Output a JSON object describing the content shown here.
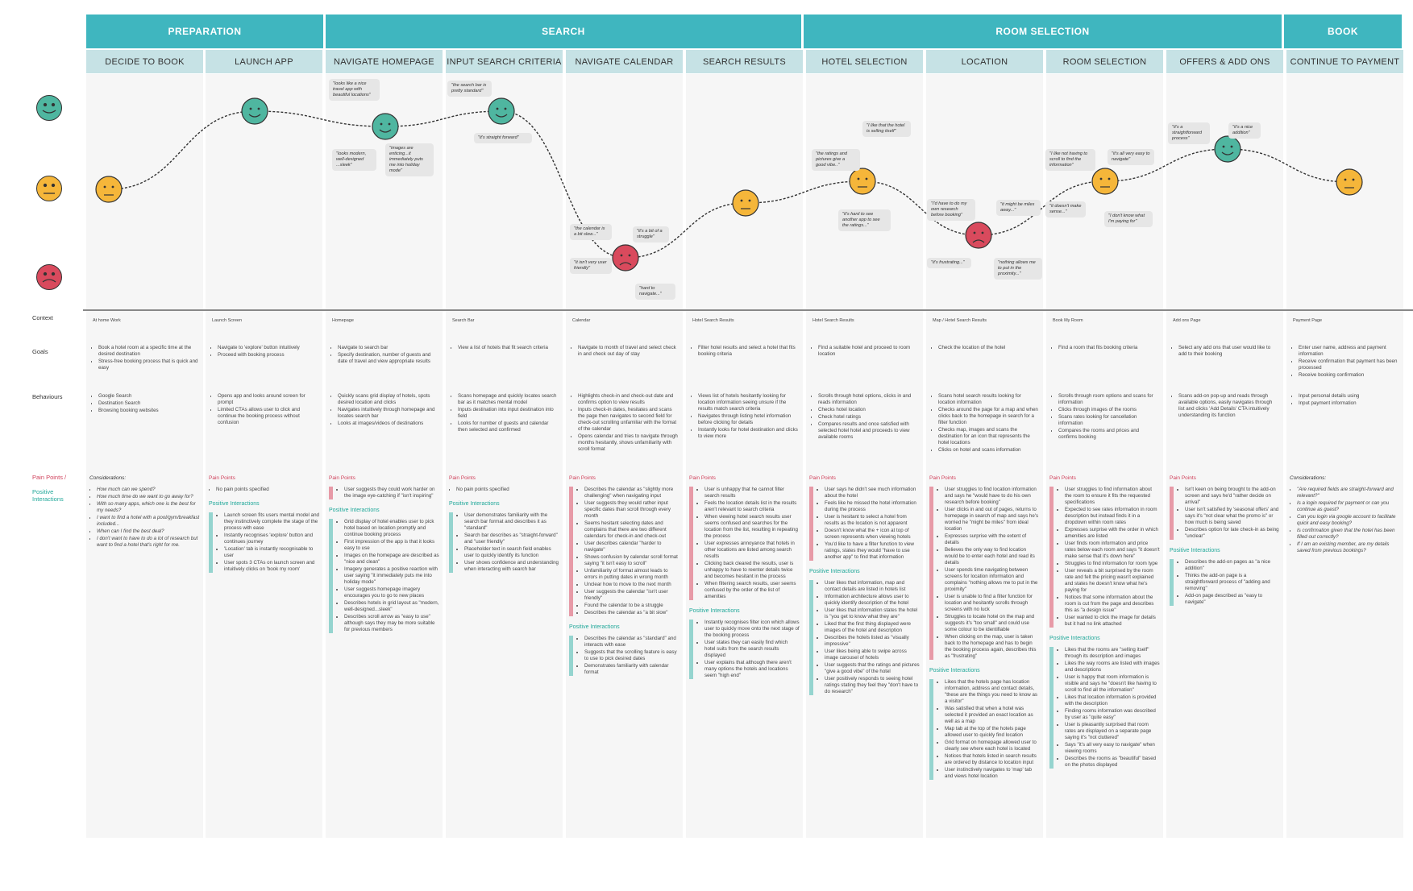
{
  "phases": [
    "PREPARATION",
    "SEARCH",
    "ROOM SELECTION",
    "BOOK"
  ],
  "steps": [
    "DECIDE TO BOOK",
    "LAUNCH APP",
    "NAVIGATE HOMEPAGE",
    "INPUT SEARCH CRITERIA",
    "NAVIGATE CALENDAR",
    "SEARCH RESULTS",
    "HOTEL SELECTION",
    "LOCATION",
    "ROOM SELECTION",
    "OFFERS & ADD ONS",
    "CONTINUE TO PAYMENT"
  ],
  "row_labels": {
    "context": "Context",
    "goals": "Goals",
    "behaviours": "Behaviours",
    "pain_points": "Pain Points /",
    "positive": "Positive Interactions"
  },
  "emotions": [
    "happy",
    "neutral",
    "neutral",
    "happy",
    "happy",
    "sad",
    "neutral",
    "neutral",
    "sad",
    "neutral",
    "happy",
    "neutral"
  ],
  "colors": {
    "phase": "#3fb6bf",
    "step": "#c6e2e5",
    "happy": "#4fb6a0",
    "neutral": "#f5b63a",
    "sad": "#d94a5d",
    "pain": "#d0415b",
    "positive": "#21a89a"
  },
  "bubbles": [
    "\"looks like a nice travel app with beautiful locations\"",
    "\"looks modern, well-designed ...sleek\"",
    "\"images are enticing...it immediately puts me into holiday mode\"",
    "\"the search bar is pretty standard\"",
    "\"it's straight forward\"",
    "\"the calendar is a bit slow...\"",
    "\"it's a bit of a struggle\"",
    "\"it isn't very user friendly\"",
    "\"hard to navigate...\"",
    "\"I like that the hotel is selling itself\"",
    "\"the ratings and pictures give a good vibe..\"",
    "\"it's hard to see another app to see the ratings...\"",
    "\"I'd have to do my own research before booking\"",
    "\"it might be miles away...\"",
    "\"it's frustrating...\"",
    "\"nothing allows me to put in the proximity...\"",
    "\"I like not having to scroll to find the information\"",
    "\"it's all very easy to navigate\"",
    "\"it doesn't make sense...\"",
    "\"I don't know what I'm paying for\"",
    "\"it's a straightforward process\"",
    "\"it's a nice addition\""
  ],
  "context": [
    "At home Work",
    "Launch Screen",
    "Homepage",
    "Search Bar",
    "Calendar",
    "Hotel Search Results",
    "Hotel Search Results",
    "Map / Hotel Search Results",
    "Book My Room",
    "Add ons Page",
    "Payment Page"
  ],
  "goals": [
    [
      "Book a hotel room at a specific time at the desired destination",
      "Stress-free booking process that is quick and easy"
    ],
    [
      "Navigate to 'explore' button intuitively",
      "Proceed with booking process"
    ],
    [
      "Navigate to search bar",
      "Specify destination, number of guests and date of travel and view appropriate results"
    ],
    [
      "View a list of hotels that fit search criteria"
    ],
    [
      "Navigate to month of travel and select check in and check out day of stay"
    ],
    [
      "Filter hotel results and select a hotel that fits booking criteria"
    ],
    [
      "Find a suitable hotel and proceed to room location"
    ],
    [
      "Check the location of the hotel"
    ],
    [
      "Find a room that fits booking criteria"
    ],
    [
      "Select any add ons that user would like to add to their booking"
    ],
    [
      "Enter user name, address and payment information",
      "Receive confirmation that payment has been processed",
      "Receive booking confirmation"
    ]
  ],
  "behaviours": [
    [
      "Google Search",
      "Destination Search",
      "Browsing booking websites"
    ],
    [
      "Opens app and looks around screen for prompt",
      "Limited CTAs allows user to click and continue the booking process without confusion"
    ],
    [
      "Quickly scans grid display of hotels, spots desired location and clicks",
      "Navigates intuitively through homepage and locates search bar",
      "Looks at images/videos of destinations"
    ],
    [
      "Scans homepage and quickly locates search bar as it matches mental model",
      "Inputs destination into input destination into field",
      "Looks for number of guests and calendar then selected and confirmed"
    ],
    [
      "Highlights check-in and check-out date and confirms option to view results",
      "Inputs check-in dates, hesitates and scans the page then navigates to second field for check-out scrolling unfamiliar with the format of the calendar",
      "Opens calendar and tries to navigate through months hesitantly, shows unfamiliarity with scroll format"
    ],
    [
      "Views list of hotels hesitantly looking for location information seeing unsure if the results match search criteria",
      "Navigates through listing hotel information before clicking for details",
      "Instantly looks for hotel destination and clicks to view more"
    ],
    [
      "Scrolls through hotel options, clicks in and reads information",
      "Checks hotel location",
      "Check hotel ratings",
      "Compares results and once satisfied with selected hotel hotel and proceeds to view available rooms"
    ],
    [
      "Scans hotel search results looking for location information",
      "Checks around the page for a map and when clicks back to the homepage in search for a filter function",
      "Checks map, images and scans the destination for an icon that represents the hotel locations",
      "Clicks on hotel and scans information"
    ],
    [
      "Scrolls through room options and scans for information",
      "Clicks through images of the rooms",
      "Scans rates looking for cancellation information",
      "Compares the rooms and prices and confirms booking"
    ],
    [
      "Scans add-on pop-up and reads through available options, easily navigates through list and clicks 'Add Details' CTA intuitively understanding its function"
    ],
    [
      "Input personal details using",
      "Input payment information"
    ]
  ],
  "pain_title": "Pain Points",
  "positive_title": "Positive Interactions",
  "considerations_title": "Considerations:",
  "pain": [
    [
      "How much can we spend?",
      "How much time do we want to go away for?",
      "With so many apps, which one is the best for my needs?",
      "I want to find a hotel with a pool/gym/breakfast included...",
      "When can I find the best deal?",
      "I don't want to have to do a lot of research but want to find a hotel that's right for me."
    ],
    [
      "No pain points specified"
    ],
    [
      "User suggests they could work harder on the image eye-catching if \"isn't inspiring\""
    ],
    [
      "No pain points specified"
    ],
    [
      "Describes the calendar as \"slightly more challenging\" when navigating input",
      "User suggests they would rather input specific dates than scroll through every month",
      "Seems hesitant selecting dates and complains that there are two different calendars for check-in and check-out",
      "User describes calendar \"harder to navigate\"",
      "Shows confusion by calendar scroll format saying \"it isn't easy to scroll\"",
      "Unfamiliarity of format almost leads to errors in putting dates in wrong month",
      "Unclear how to move to the next month",
      "User suggests the calendar \"isn't user friendly\"",
      "Found the calendar to be a struggle",
      "Describes the calendar as \"a bit slow\""
    ],
    [
      "User is unhappy that he cannot filter search results",
      "Feels the location details list in the results aren't relevant to search criteria",
      "When viewing hotel search results user seems confused and searches for the location from the list, resulting in repeating the process",
      "User expresses annoyance that hotels in other locations are listed among search results",
      "Clicking back cleared the results, user is unhappy to have to reenter details twice and becomes hesitant in the process",
      "When filtering search results, user seems confused by the order of the list of amenities"
    ],
    [
      "User says he didn't see much information about the hotel",
      "Feels like he missed the hotel information during the process",
      "User is hesitant to select a hotel from results as the location is not apparent",
      "Doesn't know what the + icon at top of screen represents when viewing hotels",
      "You'd like to have a filter function to view ratings, states they would \"have to use another app\" to find that information"
    ],
    [
      "User struggles to find location information and says he \"would have to do his own research before booking\"",
      "User clicks in and out of pages, returns to homepage in search of map and says he's worried he \"might be miles\" from ideal location",
      "Expresses surprise with the extent of details",
      "Believes the only way to find location would be to enter each hotel and read its details",
      "User spends time navigating between screens for location information and complains \"nothing allows me to put in the proximity\"",
      "User is unable to find a filter function for location and hesitantly scrolls through screens with no luck",
      "Struggles to locate hotel on the map and suggests it's \"too small\" and could use some colour to be identifiable",
      "When clicking on the map, user is taken back to the homepage and has to begin the booking process again, describes this as \"frustrating\""
    ],
    [
      "User struggles to find information about the room to ensure it fits the requested specifications",
      "Expected to see rates information in room description but instead finds it in a dropdown within room rates",
      "Expresses surprise with the order in which amenities are listed",
      "User finds room information and price rates below each room and says \"it doesn't make sense that it's down here\"",
      "Struggles to find information for room type",
      "User reveals a bit surprised by the room rate and felt the pricing wasn't explained and states he doesn't know what he's paying for",
      "Notices that some information about the room is cut from the page and describes this as \"a design issue\"",
      "User wanted to click the image for details but it had no link attached"
    ],
    [
      "Isn't keen on being brought to the add-on screen and says he'd \"rather decide on arrival\"",
      "User isn't satisfied by 'seasonal offers' and says it's \"not clear what the promo is\" or how much is being saved",
      "Describes option for late check-in as being \"unclear\""
    ],
    [
      "\"Are required fields are straight-forward and relevant?\"",
      "Is a login required for payment or can you continue as guest?",
      "Can you login via google account to facilitate quick and easy booking?",
      "Is confirmation given that the hotel has been filled out correctly?",
      "If I am an existing member, are my details saved from previous bookings?"
    ]
  ],
  "positive": [
    [],
    [
      "Launch screen fits users mental model and they instinctively complete the stage of the process with ease",
      "Instantly recognises 'explore' button and continues journey",
      "'Location' tab is instantly recognisable to user",
      "User spots 3 CTAs on launch screen and intuitively clicks on 'book my room'"
    ],
    [
      "Grid display of hotel enables user to pick hotel based on location promptly and continue booking process",
      "First impression of the app is that it looks easy to use",
      "Images on the homepage are described as \"nice and clean\"",
      "Imagery generates a positive reaction with user saying \"it immediately puts me into holiday mode\"",
      "User suggests homepage imagery encourages you to go to new places",
      "Describes hotels in grid layout as \"modern, well-designed...sleek\"",
      "Describes scroll arrow as \"easy to use\" although says they may be more suitable for previous members"
    ],
    [
      "User demonstrates familiarity with the search bar format and describes it as \"standard\"",
      "Search bar describes as \"straight-forward\" and \"user friendly\"",
      "Placeholder text in search field enables user to quickly identify its function",
      "User shows confidence and understanding when interacting with search bar"
    ],
    [
      "Describes the calendar as \"standard\" and interacts with ease",
      "Suggests that the scrolling feature is easy to use to pick desired dates",
      "Demonstrates familiarity with calendar format"
    ],
    [
      "Instantly recognises filter icon which allows user to quickly move onto the next stage of the booking process",
      "User states they can easily find which hotel suits from the search results displayed",
      "User explains that although there aren't many options the hotels and locations seem \"high end\""
    ],
    [
      "User likes that information, map and contact details are listed in hotels list",
      "Information architecture allows user to quickly identify description of the hotel",
      "User likes that information states the hotel is \"you get to know what they are\"",
      "Liked that the first thing displayed were images of the hotel and description",
      "Describes the hotels listed as \"visually impressive\"",
      "User likes being able to swipe across image carousel of hotels",
      "User suggests that the ratings and pictures \"give a good vibe\" of the hotel",
      "User positively responds to seeing hotel ratings stating they feel they \"don't have to do research\""
    ],
    [
      "Likes that the hotels page has location information, address and contact details, \"these are the things you need to know as a visitor\"",
      "Was satisfied that when a hotel was selected it provided an exact location as well as a map",
      "Map tab at the top of the hotels page allowed user to quickly find location",
      "Grid format on homepage allowed user to clearly see where each hotel is located",
      "Notices that hotels listed in search results are ordered by distance to location input",
      "User instinctively navigates to 'map' tab and views hotel location"
    ],
    [
      "Likes that the rooms are \"selling itself\" through its description and images",
      "Likes the way rooms are listed with images and descriptions",
      "User is happy that room information is visible and says he \"doesn't like having to scroll to find all the information\"",
      "Likes that location information is provided with the description",
      "Finding rooms information was described by user as \"quite easy\"",
      "User is pleasantly surprised that room rates are displayed on a separate page saying it's \"not cluttered\"",
      "Says \"it's all very easy to navigate\" when viewing rooms",
      "Describes the rooms as \"beautiful\" based on the photos displayed"
    ],
    [
      "Describes the add-on pages as \"a nice addition\"",
      "Thinks the add-on page is a straightforward process of \"adding and removing\"",
      "Add-on page described as \"easy to navigate\""
    ],
    []
  ]
}
